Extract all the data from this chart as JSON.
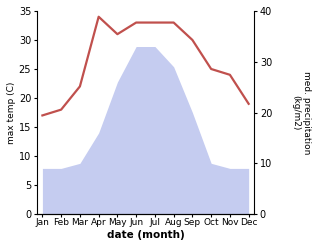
{
  "months": [
    "Jan",
    "Feb",
    "Mar",
    "Apr",
    "May",
    "Jun",
    "Jul",
    "Aug",
    "Sep",
    "Oct",
    "Nov",
    "Dec"
  ],
  "temperature": [
    17,
    18,
    22,
    34,
    31,
    33,
    33,
    33,
    30,
    25,
    24,
    19
  ],
  "precipitation": [
    9,
    9,
    10,
    16,
    26,
    33,
    33,
    29,
    20,
    10,
    9,
    9
  ],
  "temp_color": "#c0504d",
  "precip_fill_color": "#c5ccf0",
  "temp_ylim": [
    0,
    35
  ],
  "precip_ylim": [
    0,
    40
  ],
  "temp_yticks": [
    0,
    5,
    10,
    15,
    20,
    25,
    30,
    35
  ],
  "precip_yticks": [
    0,
    10,
    20,
    30,
    40
  ],
  "xlabel": "date (month)",
  "ylabel_left": "max temp (C)",
  "ylabel_right": "med. precipitation\n(kg/m2)",
  "bg_color": "#ffffff",
  "linewidth": 1.6,
  "precip_scale_factor": 0.875
}
